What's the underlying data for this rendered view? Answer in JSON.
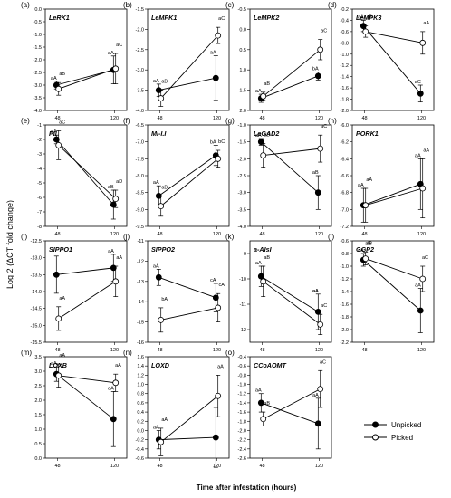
{
  "figure": {
    "ylabel": "Log 2 (ΔCT fold change)",
    "xlabel": "Time after infestation (hours)",
    "legend": {
      "placement": "bottom-right",
      "unpicked": "Unpicked",
      "picked": "Picked"
    }
  },
  "chart_data": [
    {
      "letter": "(a)",
      "title": "LeRK1",
      "type": "line",
      "x": [
        48,
        120
      ],
      "ylim": [
        -4.0,
        0.0
      ],
      "yticks": [
        "-4.0",
        "-3.5",
        "-3.0",
        "-2.5",
        "-2.0",
        "-1.5",
        "-1.0",
        "-0.5",
        "0.0"
      ],
      "series": [
        {
          "name": "Unpicked",
          "values": [
            -3.0,
            -2.4
          ],
          "err": [
            0.15,
            0.55
          ],
          "labels": [
            "aA",
            "aA"
          ]
        },
        {
          "name": "Picked",
          "values": [
            -3.15,
            -2.35
          ],
          "err": [
            0.25,
            0.6
          ],
          "labels": [
            "aB",
            "aC"
          ]
        }
      ]
    },
    {
      "letter": "(b)",
      "title": "LeMPK1",
      "type": "line",
      "x": [
        48,
        120
      ],
      "ylim": [
        -4.0,
        -1.5
      ],
      "yticks": [
        "-4.0",
        "-3.5",
        "-3.0",
        "-2.5",
        "-2.0",
        "-1.5"
      ],
      "series": [
        {
          "name": "Unpicked",
          "values": [
            -3.5,
            -3.2
          ],
          "err": [
            0.15,
            0.55
          ],
          "labels": [
            "aA",
            "aA"
          ]
        },
        {
          "name": "Picked",
          "values": [
            -3.7,
            -2.15
          ],
          "err": [
            0.2,
            0.2
          ],
          "labels": [
            "aB",
            "aC"
          ]
        }
      ]
    },
    {
      "letter": "(c)",
      "title": "LeMPK2",
      "type": "line",
      "x": [
        48,
        120
      ],
      "ylim": [
        -0.5,
        2.0
      ],
      "yticks": [
        "2.0",
        "1.5",
        "1.0",
        "0.5",
        "0.0",
        "-0.5"
      ],
      "invert": true,
      "series": [
        {
          "name": "Unpicked",
          "values": [
            1.7,
            1.15
          ],
          "err": [
            0.1,
            0.1
          ],
          "labels": [
            "aA",
            "bA"
          ]
        },
        {
          "name": "Picked",
          "values": [
            1.65,
            0.5
          ],
          "err": [
            0.1,
            0.25
          ],
          "labels": [
            "aB",
            "aC"
          ]
        }
      ]
    },
    {
      "letter": "(d)",
      "title": "LeMPK3",
      "type": "line",
      "x": [
        48,
        120
      ],
      "ylim": [
        -2.0,
        -0.2
      ],
      "yticks": [
        "-2.0",
        "-1.8",
        "-1.6",
        "-1.4",
        "-1.2",
        "-1.0",
        "-0.8",
        "-0.6",
        "-0.4",
        "-0.2"
      ],
      "series": [
        {
          "name": "Unpicked",
          "values": [
            -0.5,
            -1.7
          ],
          "err": [
            0.1,
            0.15
          ],
          "labels": [
            "aA",
            "aC"
          ]
        },
        {
          "name": "Picked",
          "values": [
            -0.6,
            -0.8
          ],
          "err": [
            0.1,
            0.2
          ],
          "labels": [
            "aB",
            "aA"
          ]
        }
      ]
    },
    {
      "letter": "(e)",
      "title": "PII",
      "type": "line",
      "x": [
        48,
        120
      ],
      "ylim": [
        -8,
        -1
      ],
      "yticks": [
        "-8",
        "-7",
        "-6",
        "-5",
        "-4",
        "-3",
        "-2",
        "-1"
      ],
      "series": [
        {
          "name": "Unpicked",
          "values": [
            -2.0,
            -6.5
          ],
          "err": [
            0.3,
            1.0
          ],
          "labels": [
            "aA",
            "aB"
          ]
        },
        {
          "name": "Picked",
          "values": [
            -2.4,
            -6.1
          ],
          "err": [
            1.0,
            0.6
          ],
          "labels": [
            "aC",
            "aD"
          ]
        }
      ]
    },
    {
      "letter": "(f)",
      "title": "Mi-I.I",
      "type": "line",
      "x": [
        48,
        120
      ],
      "ylim": [
        -9.5,
        -6.5
      ],
      "yticks": [
        "-9.5",
        "-9.0",
        "-8.5",
        "-8.0",
        "-7.5",
        "-7.0",
        "-6.5"
      ],
      "series": [
        {
          "name": "Unpicked",
          "values": [
            -8.6,
            -7.4
          ],
          "err": [
            0.3,
            0.3
          ],
          "labels": [
            "aA",
            "bA"
          ]
        },
        {
          "name": "Picked",
          "values": [
            -8.9,
            -7.5
          ],
          "err": [
            0.3,
            0.25
          ],
          "labels": [
            "aB",
            "bC"
          ]
        }
      ]
    },
    {
      "letter": "(g)",
      "title": "LeGAD2",
      "type": "line",
      "x": [
        48,
        120
      ],
      "ylim": [
        -4.0,
        -1.0
      ],
      "yticks": [
        "-4.0",
        "-3.5",
        "-3.0",
        "-2.5",
        "-2.0",
        "-1.5",
        "-1.0"
      ],
      "series": [
        {
          "name": "Unpicked",
          "values": [
            -1.5,
            -3.0
          ],
          "err": [
            0.1,
            0.5
          ],
          "labels": [
            "aA",
            "aB"
          ]
        },
        {
          "name": "Picked",
          "values": [
            -1.9,
            -1.7
          ],
          "err": [
            0.35,
            0.4
          ],
          "labels": [
            "aB",
            "aC"
          ]
        }
      ]
    },
    {
      "letter": "(h)",
      "title": "PORK1",
      "type": "line",
      "x": [
        48,
        120
      ],
      "ylim": [
        -7.2,
        -6.0
      ],
      "yticks": [
        "-7.2",
        "-7.0",
        "-6.8",
        "-6.6",
        "-6.4",
        "-6.2",
        "-6.0"
      ],
      "series": [
        {
          "name": "Unpicked",
          "values": [
            -6.95,
            -6.7
          ],
          "err": [
            0.2,
            0.3
          ],
          "labels": [
            "aA",
            "aA"
          ]
        },
        {
          "name": "Picked",
          "values": [
            -6.95,
            -6.75
          ],
          "err": [
            0.2,
            0.35
          ],
          "labels": [
            "aA",
            "aA"
          ]
        }
      ]
    },
    {
      "letter": "(i)",
      "title": "SIPPO1",
      "type": "line",
      "x": [
        48,
        120
      ],
      "ylim": [
        -15.5,
        -12.5
      ],
      "yticks": [
        "-15.5",
        "-15.0",
        "-14.5",
        "-14.0",
        "-13.5",
        "-13.0",
        "-12.5"
      ],
      "series": [
        {
          "name": "Unpicked",
          "values": [
            -13.5,
            -13.3
          ],
          "err": [
            0.55,
            0.4
          ],
          "labels": [
            "",
            ""
          ]
        },
        {
          "name": "Picked",
          "values": [
            -14.8,
            -13.7
          ],
          "err": [
            0.35,
            0.45
          ],
          "labels": [
            "aA",
            "aA"
          ]
        }
      ]
    },
    {
      "letter": "(j)",
      "title": "SIPPO2",
      "type": "line",
      "x": [
        48,
        120
      ],
      "ylim": [
        -16,
        -11
      ],
      "yticks": [
        "-16",
        "-15",
        "-14",
        "-13",
        "-12",
        "-11"
      ],
      "series": [
        {
          "name": "Unpicked",
          "values": [
            -12.8,
            -13.8
          ],
          "err": [
            0.4,
            0.7
          ],
          "labels": [
            "aA",
            "cA"
          ]
        },
        {
          "name": "Picked",
          "values": [
            -14.9,
            -14.3
          ],
          "err": [
            0.6,
            0.7
          ],
          "labels": [
            "bA",
            "cA"
          ]
        }
      ]
    },
    {
      "letter": "(k)",
      "title": "a-AIsI",
      "type": "line",
      "x": [
        48,
        120
      ],
      "ylim": [
        -12.5,
        -8.5
      ],
      "yticks": [
        "-12",
        "-11",
        "-10",
        "-9"
      ],
      "series": [
        {
          "name": "Unpicked",
          "values": [
            -9.9,
            -11.3
          ],
          "err": [
            0.4,
            0.7
          ],
          "labels": [
            "aA",
            "aA"
          ]
        },
        {
          "name": "Picked",
          "values": [
            -10.1,
            -11.8
          ],
          "err": [
            0.6,
            0.4
          ],
          "labels": [
            "aB",
            "aC"
          ]
        }
      ]
    },
    {
      "letter": "(l)",
      "title": "GGP2",
      "type": "line",
      "x": [
        48,
        120
      ],
      "ylim": [
        -2.2,
        -0.6
      ],
      "yticks": [
        "-2.2",
        "-2.0",
        "-1.8",
        "-1.6",
        "-1.4",
        "-1.2",
        "-1.0",
        "-0.8",
        "-0.6"
      ],
      "series": [
        {
          "name": "Unpicked",
          "values": [
            -0.9,
            -1.7
          ],
          "err": [
            0.1,
            0.35
          ],
          "labels": [
            "aA",
            ""
          ]
        },
        {
          "name": "Picked",
          "values": [
            -0.88,
            -1.2
          ],
          "err": [
            0.1,
            0.2
          ],
          "labels": [
            "aB",
            ""
          ]
        }
      ]
    },
    {
      "letter": "(m)",
      "title": "LOXB",
      "type": "line",
      "x": [
        48,
        120
      ],
      "ylim": [
        0.0,
        3.5
      ],
      "yticks": [
        "0.0",
        "0.5",
        "1.0",
        "1.5",
        "2.0",
        "2.5",
        "3.0",
        "3.5"
      ],
      "series": [
        {
          "name": "Unpicked",
          "values": [
            2.9,
            1.35
          ],
          "err": [
            0.25,
            0.95
          ],
          "labels": [
            "aA",
            ""
          ]
        },
        {
          "name": "Picked",
          "values": [
            2.85,
            2.6
          ],
          "err": [
            0.4,
            0.3
          ],
          "labels": [
            "aA",
            ""
          ]
        }
      ]
    },
    {
      "letter": "(n)",
      "title": "LOXD",
      "type": "line",
      "x": [
        48,
        120
      ],
      "ylim": [
        -0.6,
        1.6
      ],
      "yticks": [
        "-0.6",
        "-0.4",
        "-0.2",
        "0.0",
        "0.2",
        "0.4",
        "0.6",
        "0.8",
        "1.0",
        "1.2",
        "1.4",
        "1.6"
      ],
      "series": [
        {
          "name": "Unpicked",
          "values": [
            -0.2,
            -0.15
          ],
          "err": [
            0.2,
            0.65
          ],
          "labels": [
            "aA",
            ""
          ]
        },
        {
          "name": "Picked",
          "values": [
            -0.25,
            0.75
          ],
          "err": [
            0.3,
            0.45
          ],
          "labels": [
            "aA",
            ""
          ]
        }
      ]
    },
    {
      "letter": "(o)",
      "title": "CCoAOMT",
      "type": "line",
      "x": [
        48,
        120
      ],
      "ylim": [
        -2.6,
        -0.4
      ],
      "yticks": [
        "-2.6",
        "-2.4",
        "-2.2",
        "-2.0",
        "-1.8",
        "-1.6",
        "-1.4",
        "-1.2",
        "-1.0",
        "-0.8",
        "-0.6",
        "-0.4"
      ],
      "series": [
        {
          "name": "Unpicked",
          "values": [
            -1.4,
            -1.85
          ],
          "err": [
            0.2,
            0.55
          ],
          "labels": [
            "aA",
            ""
          ]
        },
        {
          "name": "Picked",
          "values": [
            -1.75,
            -1.1
          ],
          "err": [
            0.15,
            0.4
          ],
          "labels": [
            "aB",
            ""
          ]
        }
      ]
    }
  ],
  "extra_point_labels": [
    {
      "panel": 8,
      "series": 0,
      "idx": 1,
      "text": "aA"
    },
    {
      "panel": 10,
      "series": 0,
      "idx": 1,
      "text": "aA"
    },
    {
      "panel": 11,
      "series": 0,
      "idx": 1,
      "text": "aA"
    },
    {
      "panel": 11,
      "series": 1,
      "idx": 1,
      "text": "aC"
    },
    {
      "panel": 11,
      "series": 1,
      "idx": 0,
      "text": "aB"
    },
    {
      "panel": 12,
      "series": 0,
      "idx": 1,
      "text": "aA"
    },
    {
      "panel": 12,
      "series": 1,
      "idx": 1,
      "text": "aA"
    },
    {
      "panel": 13,
      "series": 1,
      "idx": 1,
      "text": "aA"
    },
    {
      "panel": 14,
      "series": 0,
      "idx": 1,
      "text": "aA"
    },
    {
      "panel": 14,
      "series": 1,
      "idx": 1,
      "text": "aC"
    }
  ]
}
